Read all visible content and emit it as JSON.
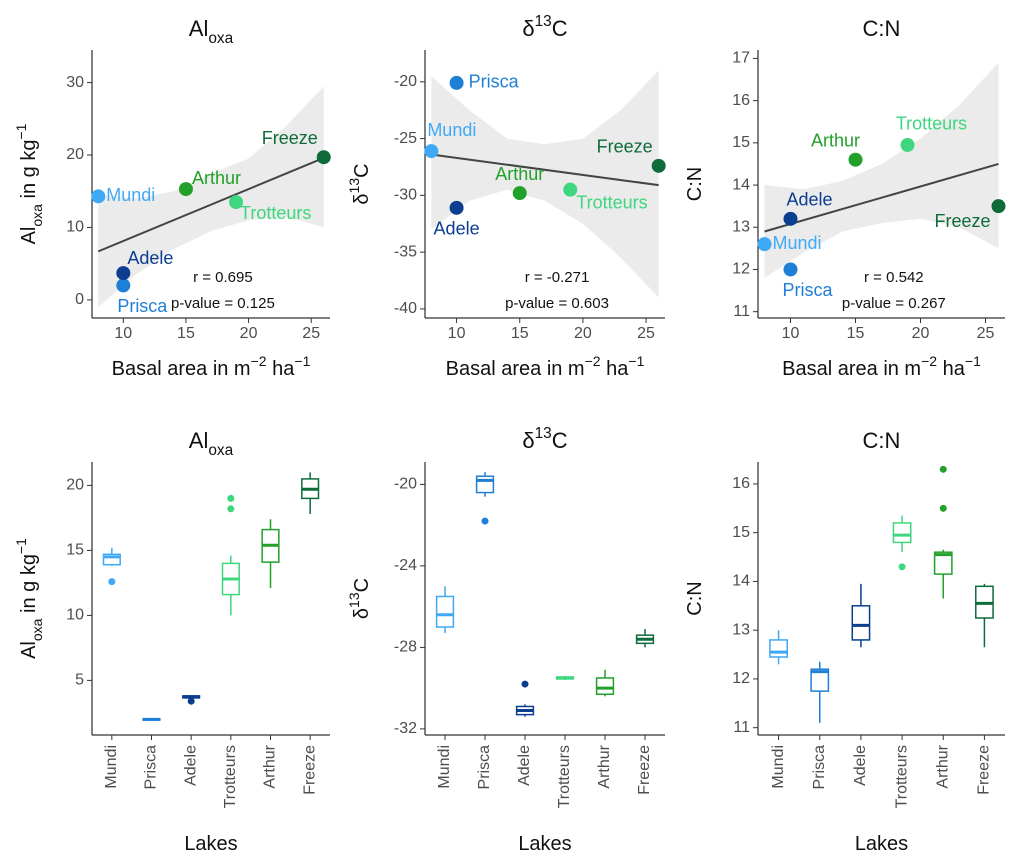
{
  "chart_data": [
    {
      "type": "scatter",
      "title": [
        {
          "t": "Al"
        },
        {
          "t": "oxa",
          "s": "sub"
        }
      ],
      "xlabel": [
        {
          "t": "Basal area in m"
        },
        {
          "t": "−2",
          "s": "sup"
        },
        {
          "t": " ha"
        },
        {
          "t": "−1",
          "s": "sup"
        }
      ],
      "ylabel": [
        {
          "t": "Al"
        },
        {
          "t": "oxa",
          "s": "sub"
        },
        {
          "t": " in g kg"
        },
        {
          "t": "−1",
          "s": "sup"
        }
      ],
      "labels": [
        "Mundi",
        "Prisca",
        "Adele",
        "Arthur",
        "Trotteurs",
        "Freeze"
      ],
      "colors": [
        "#3fa9f5",
        "#1e7fd6",
        "#0b3d91",
        "#22a12a",
        "#3ed67e",
        "#0f6b3a"
      ],
      "x": [
        8,
        10,
        10,
        15,
        19,
        26
      ],
      "values": [
        14.3,
        2.0,
        3.7,
        15.3,
        13.5,
        19.7
      ],
      "fit": {
        "x": [
          8,
          26
        ],
        "values": [
          6.7,
          19.6
        ]
      },
      "band": {
        "x": [
          8,
          11,
          14,
          17,
          20,
          23,
          26
        ],
        "lower": [
          -1,
          3.5,
          7,
          9.5,
          11,
          11.5,
          10
        ],
        "upper": [
          14.5,
          14,
          15,
          17.5,
          19.5,
          24,
          29.5
        ]
      },
      "annotations": [
        "r = 0.695",
        "p-value = 0.125"
      ],
      "xlim": [
        7.5,
        26.5
      ],
      "xticks": [
        10,
        15,
        20,
        25
      ],
      "ylim": [
        -2.5,
        34.5
      ],
      "yticks": [
        0,
        10,
        20,
        30
      ]
    },
    {
      "type": "scatter",
      "title": [
        {
          "t": "δ"
        },
        {
          "t": "13",
          "s": "sup"
        },
        {
          "t": "C"
        }
      ],
      "xlabel": [
        {
          "t": "Basal area in m"
        },
        {
          "t": "−2",
          "s": "sup"
        },
        {
          "t": " ha"
        },
        {
          "t": "−1",
          "s": "sup"
        }
      ],
      "ylabel": [
        {
          "t": "δ"
        },
        {
          "t": "13",
          "s": "sup"
        },
        {
          "t": "C"
        }
      ],
      "labels": [
        "Mundi",
        "Prisca",
        "Adele",
        "Arthur",
        "Trotteurs",
        "Freeze"
      ],
      "colors": [
        "#3fa9f5",
        "#1e7fd6",
        "#0b3d91",
        "#22a12a",
        "#3ed67e",
        "#0f6b3a"
      ],
      "x": [
        8,
        10,
        10,
        15,
        19,
        26
      ],
      "values": [
        -26.1,
        -20.1,
        -31.1,
        -29.8,
        -29.5,
        -27.4
      ],
      "fit": {
        "x": [
          8,
          26
        ],
        "values": [
          -26.4,
          -29.1
        ]
      },
      "band": {
        "x": [
          8,
          11,
          14,
          17,
          20,
          23,
          26
        ],
        "lower": [
          -33,
          -30.5,
          -29.5,
          -30.5,
          -32.5,
          -35.5,
          -39
        ],
        "upper": [
          -19.5,
          -22.5,
          -25,
          -25.5,
          -25,
          -22.5,
          -19
        ]
      },
      "annotations": [
        "r = -0.271",
        "p-value = 0.603"
      ],
      "xlim": [
        7.5,
        26.5
      ],
      "xticks": [
        10,
        15,
        20,
        25
      ],
      "ylim": [
        -40.8,
        -17.2
      ],
      "yticks": [
        -40,
        -35,
        -30,
        -25,
        -20
      ]
    },
    {
      "type": "scatter",
      "title": [
        {
          "t": "C:N"
        }
      ],
      "xlabel": [
        {
          "t": "Basal area in m"
        },
        {
          "t": "−2",
          "s": "sup"
        },
        {
          "t": " ha"
        },
        {
          "t": "−1",
          "s": "sup"
        }
      ],
      "ylabel": [
        {
          "t": "C:N"
        }
      ],
      "labels": [
        "Mundi",
        "Prisca",
        "Adele",
        "Arthur",
        "Trotteurs",
        "Freeze"
      ],
      "colors": [
        "#3fa9f5",
        "#1e7fd6",
        "#0b3d91",
        "#22a12a",
        "#3ed67e",
        "#0f6b3a"
      ],
      "x": [
        8,
        10,
        10,
        15,
        19,
        26
      ],
      "values": [
        12.6,
        12.0,
        13.2,
        14.6,
        14.95,
        13.5
      ],
      "fit": {
        "x": [
          8,
          26
        ],
        "values": [
          12.9,
          14.5
        ]
      },
      "band": {
        "x": [
          8,
          11,
          14,
          17,
          20,
          23,
          26
        ],
        "lower": [
          11.8,
          12.4,
          12.9,
          13.1,
          13.2,
          13.0,
          12.5
        ],
        "upper": [
          14.0,
          13.9,
          14.1,
          14.5,
          15.1,
          15.9,
          16.9
        ]
      },
      "annotations": [
        "r = 0.542",
        "p-value = 0.267"
      ],
      "xlim": [
        7.5,
        26.5
      ],
      "xticks": [
        10,
        15,
        20,
        25
      ],
      "ylim": [
        10.85,
        17.2
      ],
      "yticks": [
        11,
        12,
        13,
        14,
        15,
        16,
        17
      ]
    },
    {
      "type": "box",
      "title": [
        {
          "t": "Al"
        },
        {
          "t": "oxa",
          "s": "sub"
        }
      ],
      "xlabel": [
        {
          "t": "Lakes"
        }
      ],
      "ylabel": [
        {
          "t": "Al"
        },
        {
          "t": "oxa",
          "s": "sub"
        },
        {
          "t": " in g kg"
        },
        {
          "t": "−1",
          "s": "sup"
        }
      ],
      "categories": [
        "Mundi",
        "Prisca",
        "Adele",
        "Trotteurs",
        "Arthur",
        "Freeze"
      ],
      "colors": [
        "#3fa9f5",
        "#1e7fd6",
        "#0b3d91",
        "#3ed67e",
        "#22a12a",
        "#0f6b3a"
      ],
      "min": [
        13.8,
        1.9,
        3.6,
        10,
        12.1,
        17.8
      ],
      "q1": [
        13.9,
        1.95,
        3.65,
        11.6,
        14.1,
        19.0
      ],
      "median": [
        14.5,
        2.0,
        3.75,
        12.8,
        15.4,
        19.7
      ],
      "q3": [
        14.7,
        2.05,
        3.8,
        14.0,
        16.6,
        20.5
      ],
      "max": [
        15.2,
        2.1,
        3.85,
        14.6,
        17.4,
        21.0
      ],
      "outliers": [
        [
          12.6
        ],
        [],
        [
          3.4
        ],
        [
          18.2,
          19.0
        ],
        [],
        []
      ],
      "ylim": [
        0.8,
        21.8
      ],
      "yticks": [
        5,
        10,
        15,
        20
      ]
    },
    {
      "type": "box",
      "title": [
        {
          "t": "δ"
        },
        {
          "t": "13",
          "s": "sup"
        },
        {
          "t": "C"
        }
      ],
      "xlabel": [
        {
          "t": "Lakes"
        }
      ],
      "ylabel": [
        {
          "t": "δ"
        },
        {
          "t": "13",
          "s": "sup"
        },
        {
          "t": "C"
        }
      ],
      "categories": [
        "Mundi",
        "Prisca",
        "Adele",
        "Trotteurs",
        "Arthur",
        "Freeze"
      ],
      "colors": [
        "#3fa9f5",
        "#1e7fd6",
        "#0b3d91",
        "#3ed67e",
        "#22a12a",
        "#0f6b3a"
      ],
      "min": [
        -27.3,
        -20.6,
        -31.4,
        -29.6,
        -30.4,
        -28.0
      ],
      "q1": [
        -27.0,
        -20.4,
        -31.3,
        -29.55,
        -30.3,
        -27.8
      ],
      "median": [
        -26.4,
        -19.8,
        -31.1,
        -29.5,
        -30.0,
        -27.6
      ],
      "q3": [
        -25.5,
        -19.6,
        -30.9,
        -29.45,
        -29.5,
        -27.4
      ],
      "max": [
        -25.0,
        -19.4,
        -30.8,
        -29.4,
        -29.1,
        -27.1
      ],
      "outliers": [
        [],
        [
          -21.8
        ],
        [
          -29.8
        ],
        [],
        [],
        []
      ],
      "ylim": [
        -32.3,
        -18.9
      ],
      "yticks": [
        -32,
        -28,
        -24,
        -20
      ]
    },
    {
      "type": "box",
      "title": [
        {
          "t": "C:N"
        }
      ],
      "xlabel": [
        {
          "t": "Lakes"
        }
      ],
      "ylabel": [
        {
          "t": "C:N"
        }
      ],
      "categories": [
        "Mundi",
        "Prisca",
        "Adele",
        "Trotteurs",
        "Arthur",
        "Freeze"
      ],
      "colors": [
        "#3fa9f5",
        "#1e7fd6",
        "#0b3d91",
        "#3ed67e",
        "#22a12a",
        "#0f6b3a"
      ],
      "min": [
        12.3,
        11.1,
        12.65,
        14.6,
        13.65,
        12.65
      ],
      "q1": [
        12.45,
        11.75,
        12.8,
        14.8,
        14.15,
        13.25
      ],
      "median": [
        12.55,
        12.15,
        13.1,
        14.95,
        14.55,
        13.55
      ],
      "q3": [
        12.8,
        12.2,
        13.5,
        15.2,
        14.6,
        13.9
      ],
      "max": [
        13.0,
        12.35,
        13.95,
        15.35,
        14.65,
        13.95
      ],
      "outliers": [
        [],
        [],
        [],
        [
          14.3
        ],
        [
          15.5,
          16.3
        ],
        []
      ],
      "ylim": [
        10.85,
        16.45
      ],
      "yticks": [
        11,
        12,
        13,
        14,
        15,
        16
      ]
    }
  ]
}
